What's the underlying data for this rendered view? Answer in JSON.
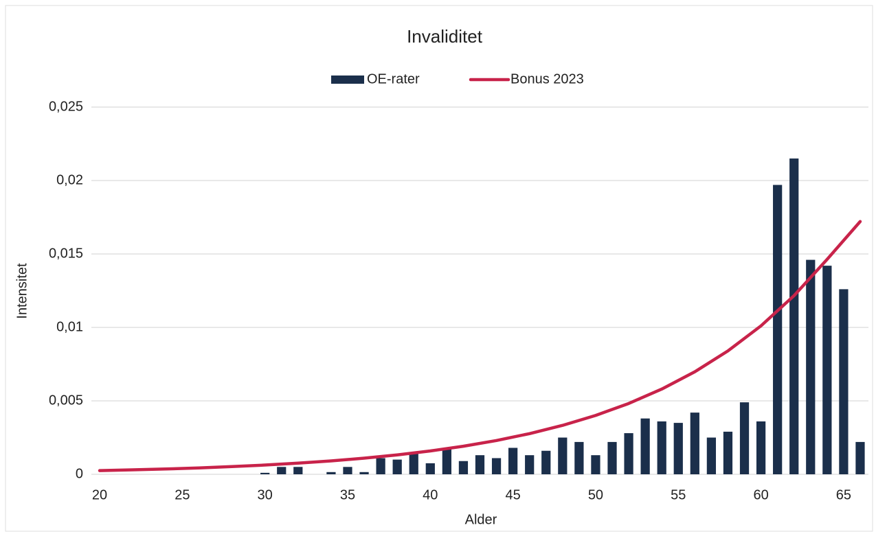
{
  "chart_data": {
    "type": "bar",
    "title": "Invaliditet",
    "x_label": "Alder",
    "y_label": "Intensitet",
    "xlim": [
      19.5,
      66.5
    ],
    "xticks": [
      20,
      25,
      30,
      35,
      40,
      45,
      50,
      55,
      60,
      65
    ],
    "ylim": [
      0,
      0.025
    ],
    "yticks": [
      0,
      {
        "value": 0.005,
        "label": "0,005"
      },
      {
        "value": 0.01,
        "label": "0,01"
      },
      {
        "value": 0.015,
        "label": "0,015"
      },
      {
        "value": 0.02,
        "label": "0,02"
      },
      {
        "value": 0.025,
        "label": "0,025"
      }
    ],
    "grid": true,
    "series": [
      {
        "name": "OE-rater",
        "type": "bar",
        "color": "#1b2f4b",
        "x": [
          20,
          21,
          22,
          23,
          24,
          25,
          26,
          27,
          28,
          29,
          30,
          31,
          32,
          33,
          34,
          35,
          36,
          37,
          38,
          39,
          40,
          41,
          42,
          43,
          44,
          45,
          46,
          47,
          48,
          49,
          50,
          51,
          52,
          53,
          54,
          55,
          56,
          57,
          58,
          59,
          60,
          61,
          62,
          63,
          64,
          65,
          66
        ],
        "values": [
          0,
          0,
          0,
          0,
          0,
          0,
          0,
          0,
          0,
          0,
          0.0001,
          0.0005,
          0.0005,
          0,
          0.00015,
          0.0005,
          0.00015,
          0.0011,
          0.001,
          0.0014,
          0.00075,
          0.0018,
          0.0009,
          0.0013,
          0.0011,
          0.0018,
          0.0013,
          0.0016,
          0.0025,
          0.0022,
          0.0013,
          0.0022,
          0.0028,
          0.0038,
          0.0036,
          0.0035,
          0.0042,
          0.0025,
          0.0029,
          0.0049,
          0.0036,
          0.0197,
          0.0215,
          0.0146,
          0.0142,
          0.0126,
          0.0022
        ]
      },
      {
        "name": "Bonus 2023",
        "type": "line",
        "color": "#c8234a",
        "x": [
          20,
          22,
          24,
          26,
          28,
          30,
          32,
          34,
          36,
          38,
          40,
          42,
          44,
          46,
          48,
          50,
          52,
          54,
          56,
          58,
          60,
          62,
          64,
          66
        ],
        "values": [
          0.00025,
          0.000301,
          0.000361,
          0.000435,
          0.000524,
          0.00063,
          0.000758,
          0.000912,
          0.001097,
          0.00132,
          0.001588,
          0.001911,
          0.0023,
          0.002767,
          0.00333,
          0.004006,
          0.004821,
          0.005801,
          0.00698,
          0.008399,
          0.010106,
          0.012161,
          0.014633,
          0.017208
        ]
      }
    ]
  }
}
